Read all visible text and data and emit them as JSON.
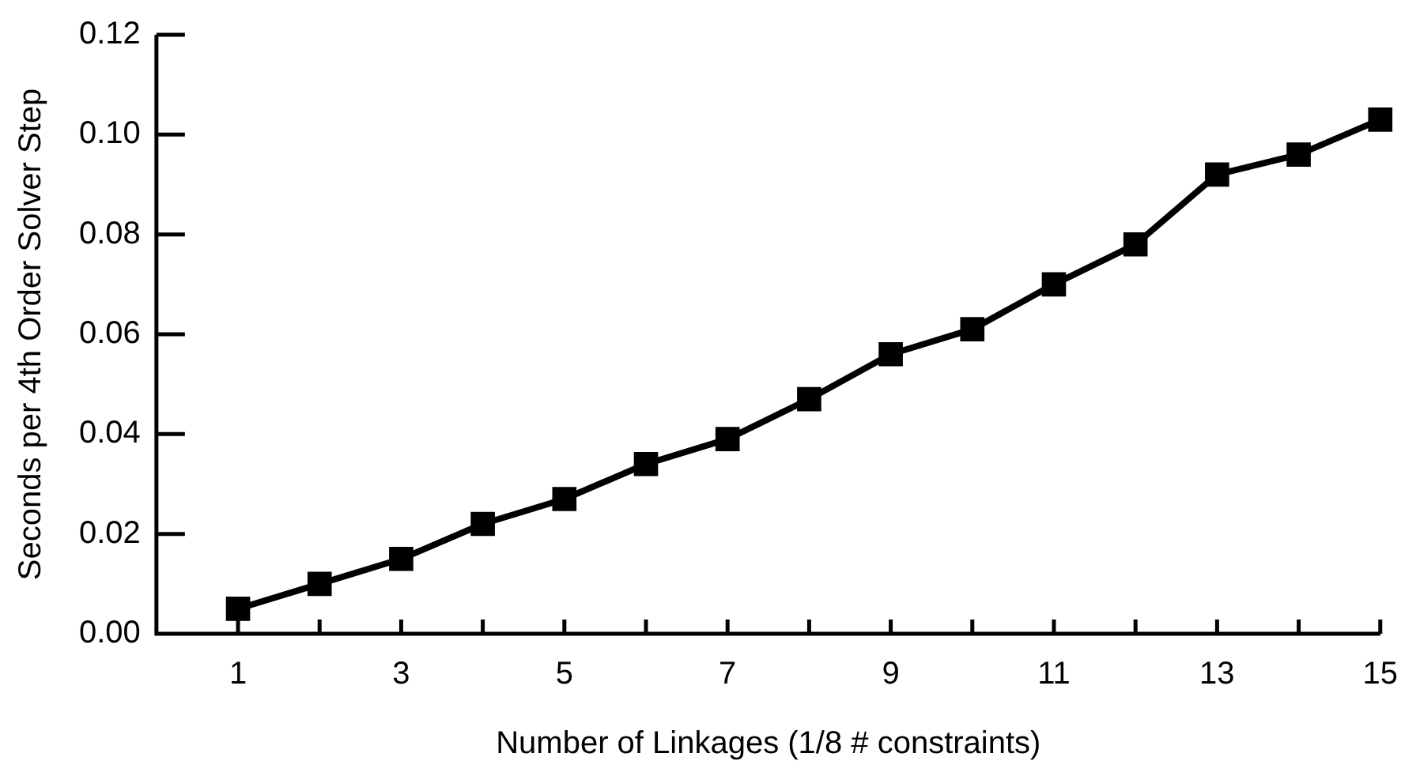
{
  "chart_data": {
    "type": "line",
    "xlabel": "Number of Linkages (1/8 # constraints)",
    "ylabel": "Seconds per 4th Order Solver Step",
    "x": [
      1,
      2,
      3,
      4,
      5,
      6,
      7,
      8,
      9,
      10,
      11,
      12,
      13,
      14,
      15
    ],
    "series": [
      {
        "color": "#000000",
        "values": [
          0.005,
          0.01,
          0.015,
          0.022,
          0.027,
          0.034,
          0.039,
          0.047,
          0.056,
          0.061,
          0.07,
          0.078,
          0.092,
          0.096,
          0.103
        ]
      }
    ],
    "xlim": [
      0,
      15
    ],
    "xticks": [
      {
        "value": 0,
        "label": null
      },
      1,
      {
        "value": 2,
        "label": null
      },
      3,
      {
        "value": 4,
        "label": null
      },
      5,
      {
        "value": 6,
        "label": null
      },
      7,
      {
        "value": 8,
        "label": null
      },
      9,
      {
        "value": 10,
        "label": null
      },
      11,
      {
        "value": 12,
        "label": null
      },
      13,
      {
        "value": 14,
        "label": null
      },
      15
    ],
    "ylim": [
      0,
      0.12
    ],
    "yticks": [
      {
        "value": 0,
        "label": "0.00"
      },
      {
        "value": 0.02,
        "label": "0.02"
      },
      {
        "value": 0.04,
        "label": "0.04"
      },
      {
        "value": 0.06,
        "label": "0.06"
      },
      {
        "value": 0.08,
        "label": "0.08"
      },
      {
        "value": 0.1,
        "label": "0.10"
      },
      {
        "value": 0.12,
        "label": "0.12"
      }
    ],
    "marker": "square",
    "line_style": "solid",
    "grid": false,
    "legend": false
  }
}
